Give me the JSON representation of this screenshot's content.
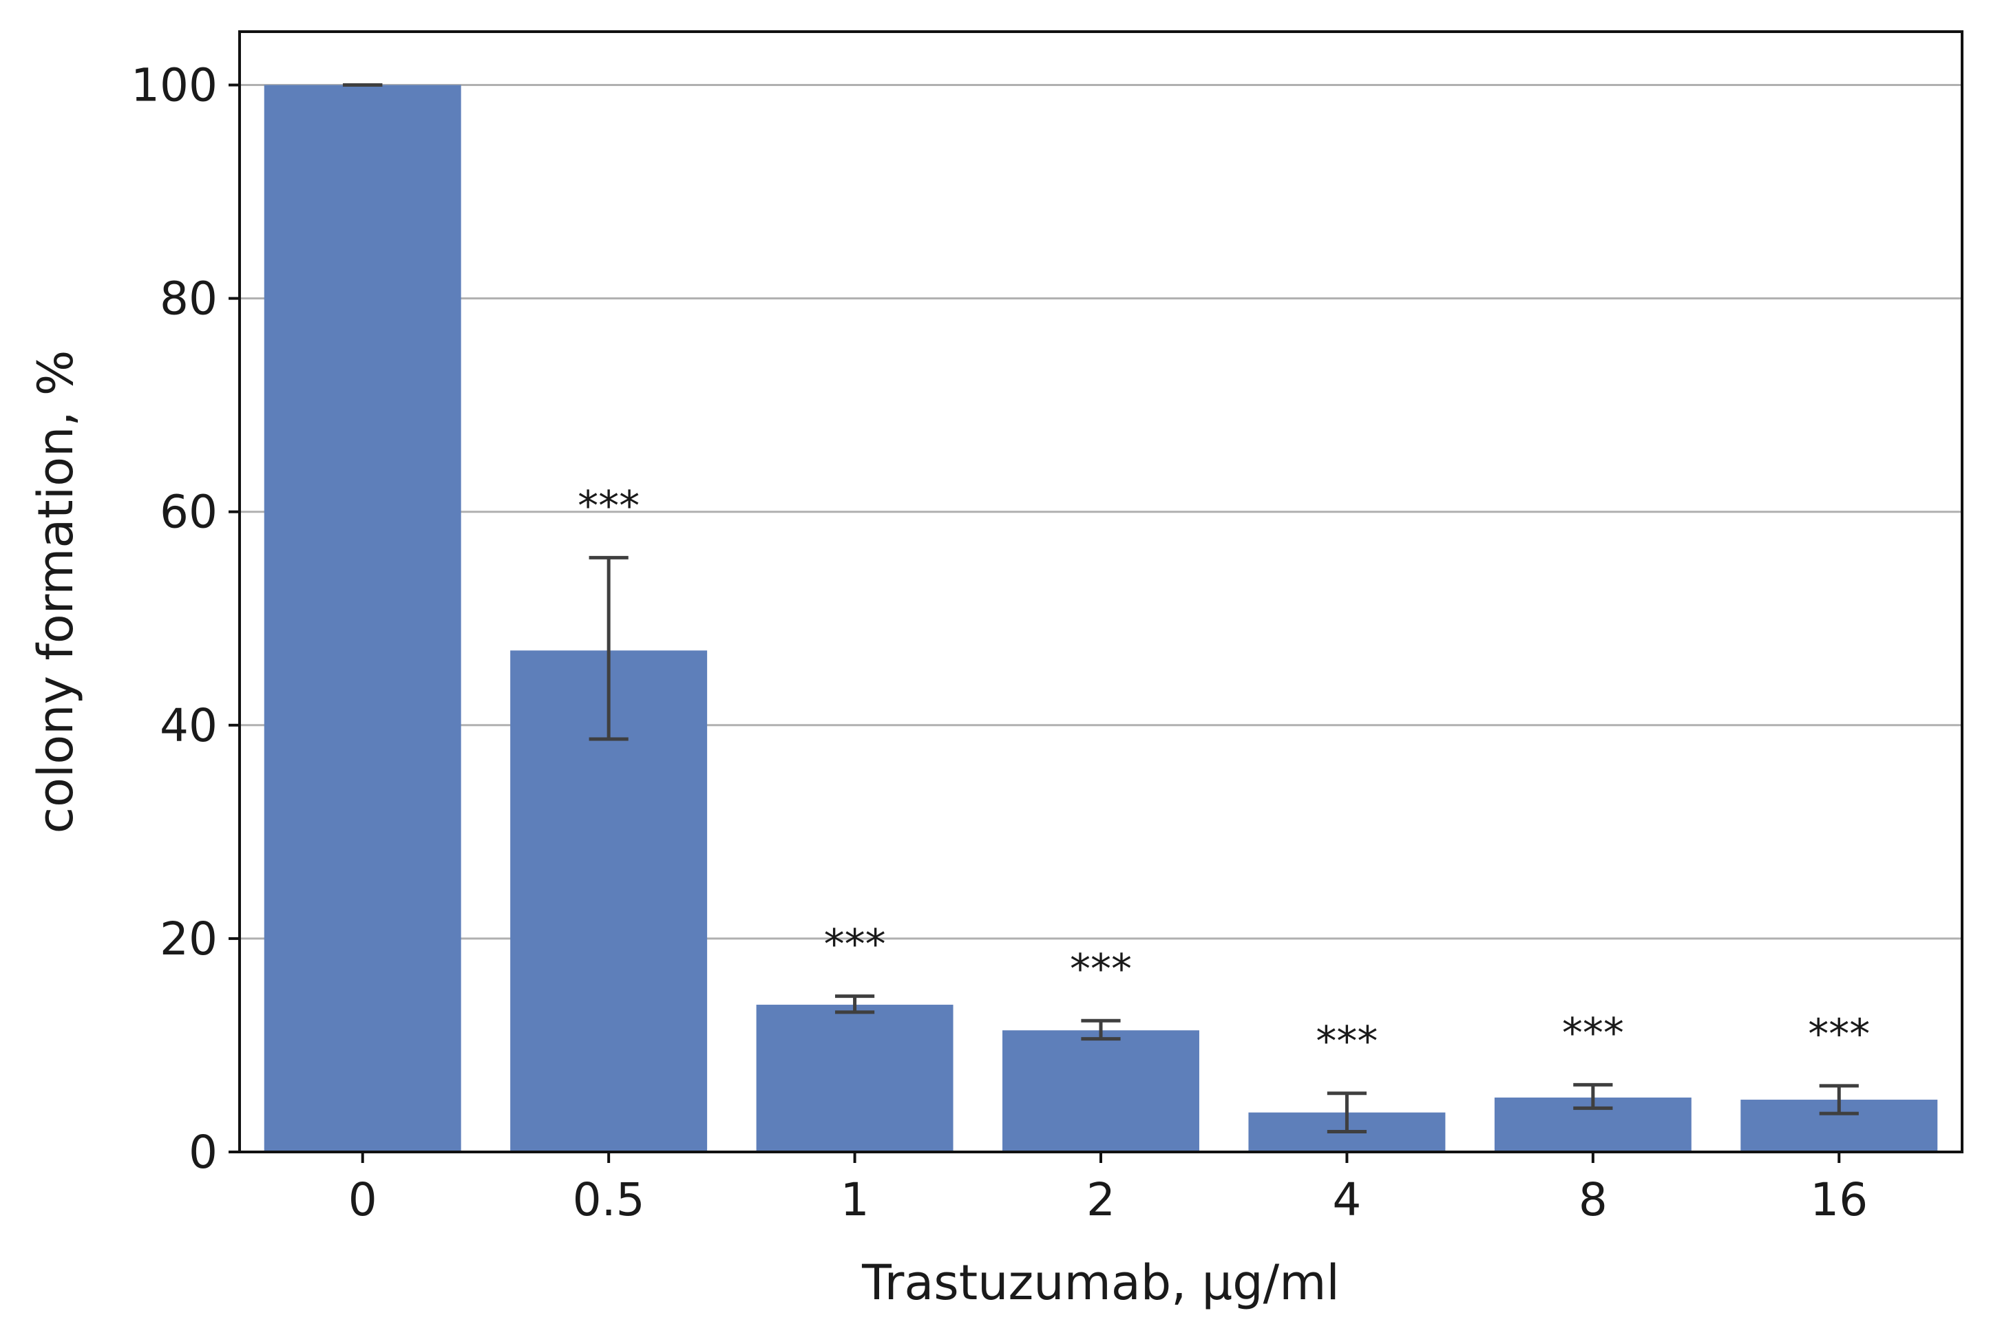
{
  "chart_data": {
    "type": "bar",
    "title": "",
    "xlabel": "Trastuzumab, μg/ml",
    "ylabel": "colony formation, %",
    "categories": [
      "0",
      "0.5",
      "1",
      "2",
      "4",
      "8",
      "16"
    ],
    "values": [
      100,
      47,
      13.8,
      11.4,
      3.7,
      5.1,
      4.9
    ],
    "error_low": [
      100,
      38.7,
      13.1,
      10.6,
      1.9,
      4.1,
      3.6
    ],
    "error_high": [
      100,
      55.7,
      14.6,
      12.3,
      5.5,
      6.3,
      6.2
    ],
    "annotations": [
      "",
      "***",
      "***",
      "***",
      "***",
      "***",
      "***"
    ],
    "ylim": [
      0,
      105
    ],
    "yticks": [
      0,
      20,
      40,
      60,
      80,
      100
    ],
    "ytick_labels": [
      "0",
      "20",
      "40",
      "60",
      "80",
      "100"
    ],
    "grid": "horizontal",
    "bar_color": "#5e7fba",
    "error_color": "#3f3f3f",
    "grid_color": "#b0b0b0"
  }
}
